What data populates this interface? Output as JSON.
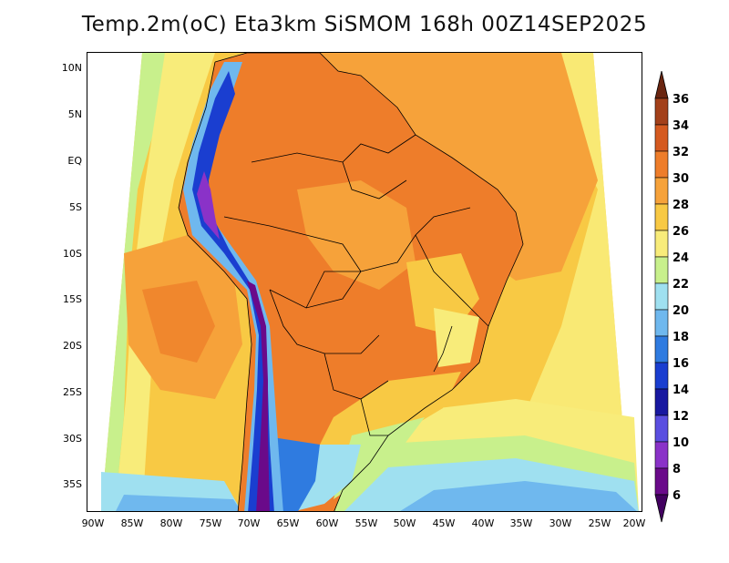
{
  "title": "Temp.2m(oC) Eta3km SiSMOM 168h 00Z14SEP2025",
  "latitude_labels": [
    "10N",
    "5N",
    "EQ",
    "5S",
    "10S",
    "15S",
    "20S",
    "25S",
    "30S",
    "35S"
  ],
  "longitude_labels": [
    "90W",
    "85W",
    "80W",
    "75W",
    "70W",
    "65W",
    "60W",
    "55W",
    "50W",
    "45W",
    "40W",
    "35W",
    "30W",
    "25W",
    "20W"
  ],
  "colorbar": {
    "labels": [
      "36",
      "34",
      "32",
      "30",
      "28",
      "26",
      "24",
      "22",
      "20",
      "18",
      "16",
      "14",
      "12",
      "10",
      "8",
      "6"
    ],
    "colors": [
      "#6a2510",
      "#a3401a",
      "#d55a20",
      "#ee7d2a",
      "#f6a23a",
      "#f8c944",
      "#f8ec7a",
      "#c8f08c",
      "#9fe0f0",
      "#6fb8ee",
      "#2f7be0",
      "#1a3ed0",
      "#1818a0",
      "#5a4ee0",
      "#8a32c8",
      "#6a0a8a",
      "#420060"
    ]
  },
  "colors": {
    "ocean_warm": "#f6a23a",
    "ocean_mild": "#f8c944",
    "ocean_cool": "#f8ec7a",
    "land_hot": "#ee7d2a",
    "andes_cold": "#6a0a8a",
    "southern_cold": "#2f7be0"
  }
}
